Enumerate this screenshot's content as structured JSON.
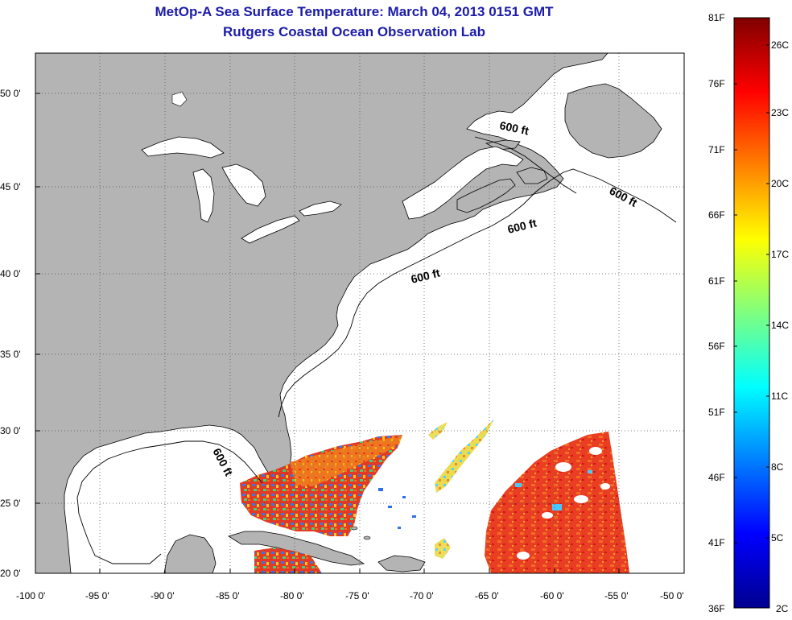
{
  "title_line1": "MetOp-A Sea Surface Temperature:  March 04, 2013 0151 GMT",
  "title_line2": "Rutgers Coastal Ocean Observation Lab",
  "lat_ticks": [
    "50 0'",
    "45 0'",
    "40 0'",
    "35 0'",
    "30 0'",
    "25 0'",
    "20 0'"
  ],
  "lon_ticks": [
    "-100 0'",
    "-95 0'",
    "-90 0'",
    "-85 0'",
    "-80 0'",
    "-75 0'",
    "-70 0'",
    "-65 0'",
    "-60 0'",
    "-55 0'",
    "-50 0'"
  ],
  "contour_labels": [
    "600 ft",
    "600 ft",
    "600 ft",
    "600 ft",
    "600 ft"
  ],
  "colorbar": {
    "fahrenheit": [
      "81F",
      "76F",
      "71F",
      "66F",
      "61F",
      "56F",
      "51F",
      "46F",
      "41F",
      "36F"
    ],
    "celsius": [
      "26C",
      "23C",
      "20C",
      "17C",
      "14C",
      "11C",
      "8C",
      "5C",
      "2C"
    ]
  },
  "colors": {
    "land": "#b4b4b4",
    "ocean": "#ffffff",
    "title": "#1c1ca8",
    "grid": "#555555"
  }
}
